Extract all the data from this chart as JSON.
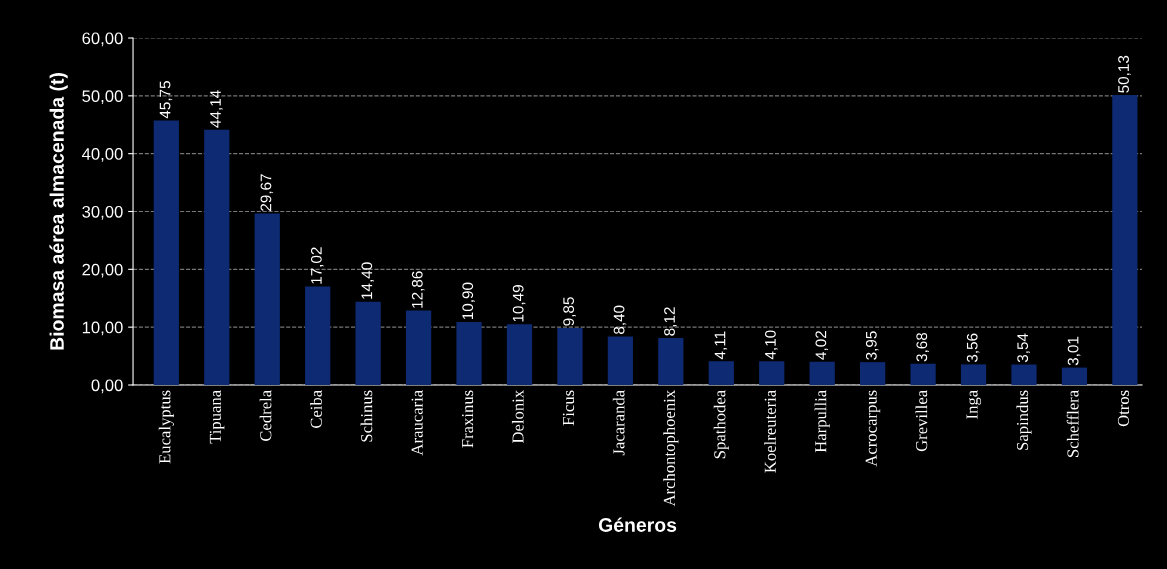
{
  "chart_data": {
    "type": "bar",
    "xlabel": "Géneros",
    "ylabel": "Biomasa aérea almacenada (t)",
    "categories": [
      "Eucalyptus",
      "Tipuana",
      "Cedrela",
      "Ceiba",
      "Schinus",
      "Araucaria",
      "Fraxinus",
      "Delonix",
      "Ficus",
      "Jacaranda",
      "Archontophoenix",
      "Spathodea",
      "Koelreuteria",
      "Harpullia",
      "Acrocarpus",
      "Grevillea",
      "Inga",
      "Sapindus",
      "Schefflera",
      "Otros"
    ],
    "values": [
      45.75,
      44.14,
      29.67,
      17.02,
      14.4,
      12.86,
      10.9,
      10.49,
      9.85,
      8.4,
      8.12,
      4.11,
      4.1,
      4.02,
      3.95,
      3.68,
      3.56,
      3.54,
      3.01,
      50.13
    ],
    "value_labels": [
      "45,75",
      "44,14",
      "29,67",
      "17,02",
      "14,40",
      "12,86",
      "10,90",
      "10,49",
      "9,85",
      "8,40",
      "8,12",
      "4,11",
      "4,10",
      "4,02",
      "3,95",
      "3,68",
      "3,56",
      "3,54",
      "3,01",
      "50,13"
    ],
    "color": "#0d2a73",
    "ylim": [
      0,
      60
    ],
    "yticks": [
      {
        "value": 0,
        "label": "0,00"
      },
      {
        "value": 10,
        "label": "10,00"
      },
      {
        "value": 20,
        "label": "20,00"
      },
      {
        "value": 30,
        "label": "30,00"
      },
      {
        "value": 40,
        "label": "40,00"
      },
      {
        "value": 50,
        "label": "50,00"
      },
      {
        "value": 60,
        "label": "60,00"
      }
    ],
    "grid": "y",
    "legend": false
  }
}
